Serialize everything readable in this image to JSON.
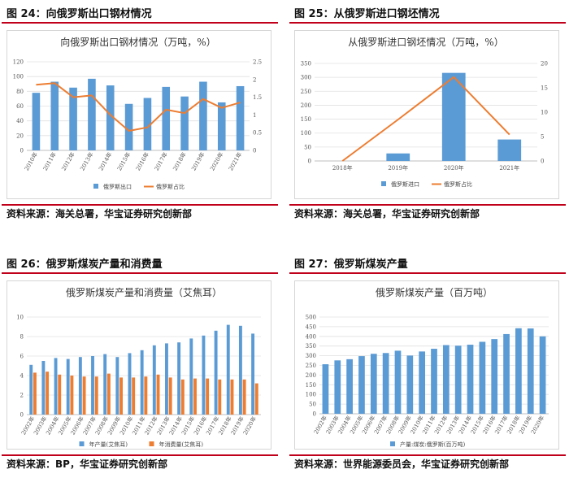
{
  "figures": [
    {
      "label": "图 24：向俄罗斯出口钢材情况",
      "source": "资料来源：海关总署，华宝证券研究创新部",
      "chart_data": {
        "type": "bar",
        "title": "向俄罗斯出口钢材情况（万吨，%）",
        "categories": [
          "2010年",
          "2011年",
          "2012年",
          "2013年",
          "2014年",
          "2015年",
          "2016年",
          "2017年",
          "2018年",
          "2019年",
          "2020年",
          "2021年"
        ],
        "series": [
          {
            "name": "俄罗斯出口",
            "type": "bar",
            "axis": "left",
            "color": "#5b9bd5",
            "values": [
              78,
              93,
              85,
              97,
              88,
              63,
              71,
              86,
              73,
              93,
              65,
              87
            ]
          },
          {
            "name": "俄罗斯占比",
            "type": "line",
            "axis": "right",
            "color": "#ed7d31",
            "values": [
              1.85,
              1.9,
              1.5,
              1.55,
              1.0,
              0.55,
              0.65,
              1.15,
              1.05,
              1.45,
              1.2,
              1.35
            ]
          }
        ],
        "ylim": [
          0,
          120
        ],
        "yticks": [
          0,
          20,
          40,
          60,
          80,
          100,
          120
        ],
        "y2lim": [
          0,
          2.5
        ],
        "y2ticks": [
          0,
          0.5,
          1,
          1.5,
          2,
          2.5
        ],
        "grid": true,
        "legend": "bottom"
      }
    },
    {
      "label": "图 25：从俄罗斯进口钢坯情况",
      "source": "资料来源：海关总署，华宝证券研究创新部",
      "chart_data": {
        "type": "bar",
        "title": "从俄罗斯进口钢坯情况（万吨，%）",
        "categories": [
          "2018年",
          "2019年",
          "2020年",
          "2021年"
        ],
        "series": [
          {
            "name": "俄罗斯进口",
            "type": "bar",
            "axis": "left",
            "color": "#5b9bd5",
            "values": [
              0,
              27,
              316,
              77
            ]
          },
          {
            "name": "俄罗斯占比",
            "type": "line",
            "axis": "right",
            "color": "#ed7d31",
            "values": [
              0,
              8.5,
              17.2,
              5.4
            ]
          }
        ],
        "ylim": [
          0,
          350
        ],
        "yticks": [
          0,
          50,
          100,
          150,
          200,
          250,
          300,
          350
        ],
        "y2lim": [
          0,
          20
        ],
        "y2ticks": [
          0,
          5,
          10,
          15,
          20
        ],
        "grid": true,
        "legend": "bottom"
      }
    },
    {
      "label": "图 26：俄罗斯煤炭产量和消费量",
      "source": "资料来源：BP，华宝证券研究创新部",
      "chart_data": {
        "type": "bar",
        "title": "俄罗斯煤炭产量和消费量（艾焦耳）",
        "categories": [
          "2002年",
          "2003年",
          "2004年",
          "2005年",
          "2006年",
          "2007年",
          "2008年",
          "2009年",
          "2010年",
          "2011年",
          "2012年",
          "2013年",
          "2014年",
          "2015年",
          "2016年",
          "2017年",
          "2018年",
          "2019年",
          "2020年"
        ],
        "series": [
          {
            "name": "年产量(艾焦耳)",
            "type": "bar",
            "color": "#5b9bd5",
            "values": [
              5.1,
              5.5,
              5.8,
              5.7,
              5.9,
              6.0,
              6.2,
              5.9,
              6.3,
              6.6,
              7.1,
              7.3,
              7.4,
              7.8,
              8.1,
              8.6,
              9.2,
              9.1,
              8.3
            ]
          },
          {
            "name": "年消费量(艾焦耳)",
            "type": "bar",
            "color": "#ed7d31",
            "values": [
              4.3,
              4.4,
              4.1,
              4.0,
              3.9,
              3.9,
              4.2,
              3.8,
              3.8,
              3.9,
              4.1,
              3.8,
              3.6,
              3.7,
              3.7,
              3.6,
              3.6,
              3.6,
              3.2
            ]
          }
        ],
        "ylim": [
          0,
          10
        ],
        "yticks": [
          0,
          2,
          4,
          6,
          8,
          10
        ],
        "grid": true,
        "legend": "bottom"
      }
    },
    {
      "label": "图 27：俄罗斯煤炭产量",
      "source": "资料来源：世界能源委员会，华宝证券研究创新部",
      "chart_data": {
        "type": "bar",
        "title": "俄罗斯煤炭产量（百万吨）",
        "categories": [
          "2002年",
          "2003年",
          "2004年",
          "2005年",
          "2006年",
          "2007年",
          "2008年",
          "2009年",
          "2010年",
          "2011年",
          "2012年",
          "2013年",
          "2014年",
          "2015年",
          "2016年",
          "2017年",
          "2018年",
          "2019年",
          "2020年"
        ],
        "series": [
          {
            "name": "产量:煤炭:俄罗斯(百万吨)",
            "type": "bar",
            "color": "#5b9bd5",
            "values": [
              256,
              276,
              282,
              298,
              310,
              314,
              326,
              301,
              322,
              336,
              355,
              352,
              357,
              372,
              386,
              412,
              442,
              441,
              400
            ]
          }
        ],
        "ylim": [
          0,
          500
        ],
        "yticks": [
          0,
          50,
          100,
          150,
          200,
          250,
          300,
          350,
          400,
          450,
          500
        ],
        "grid": true,
        "legend": "bottom"
      }
    }
  ]
}
